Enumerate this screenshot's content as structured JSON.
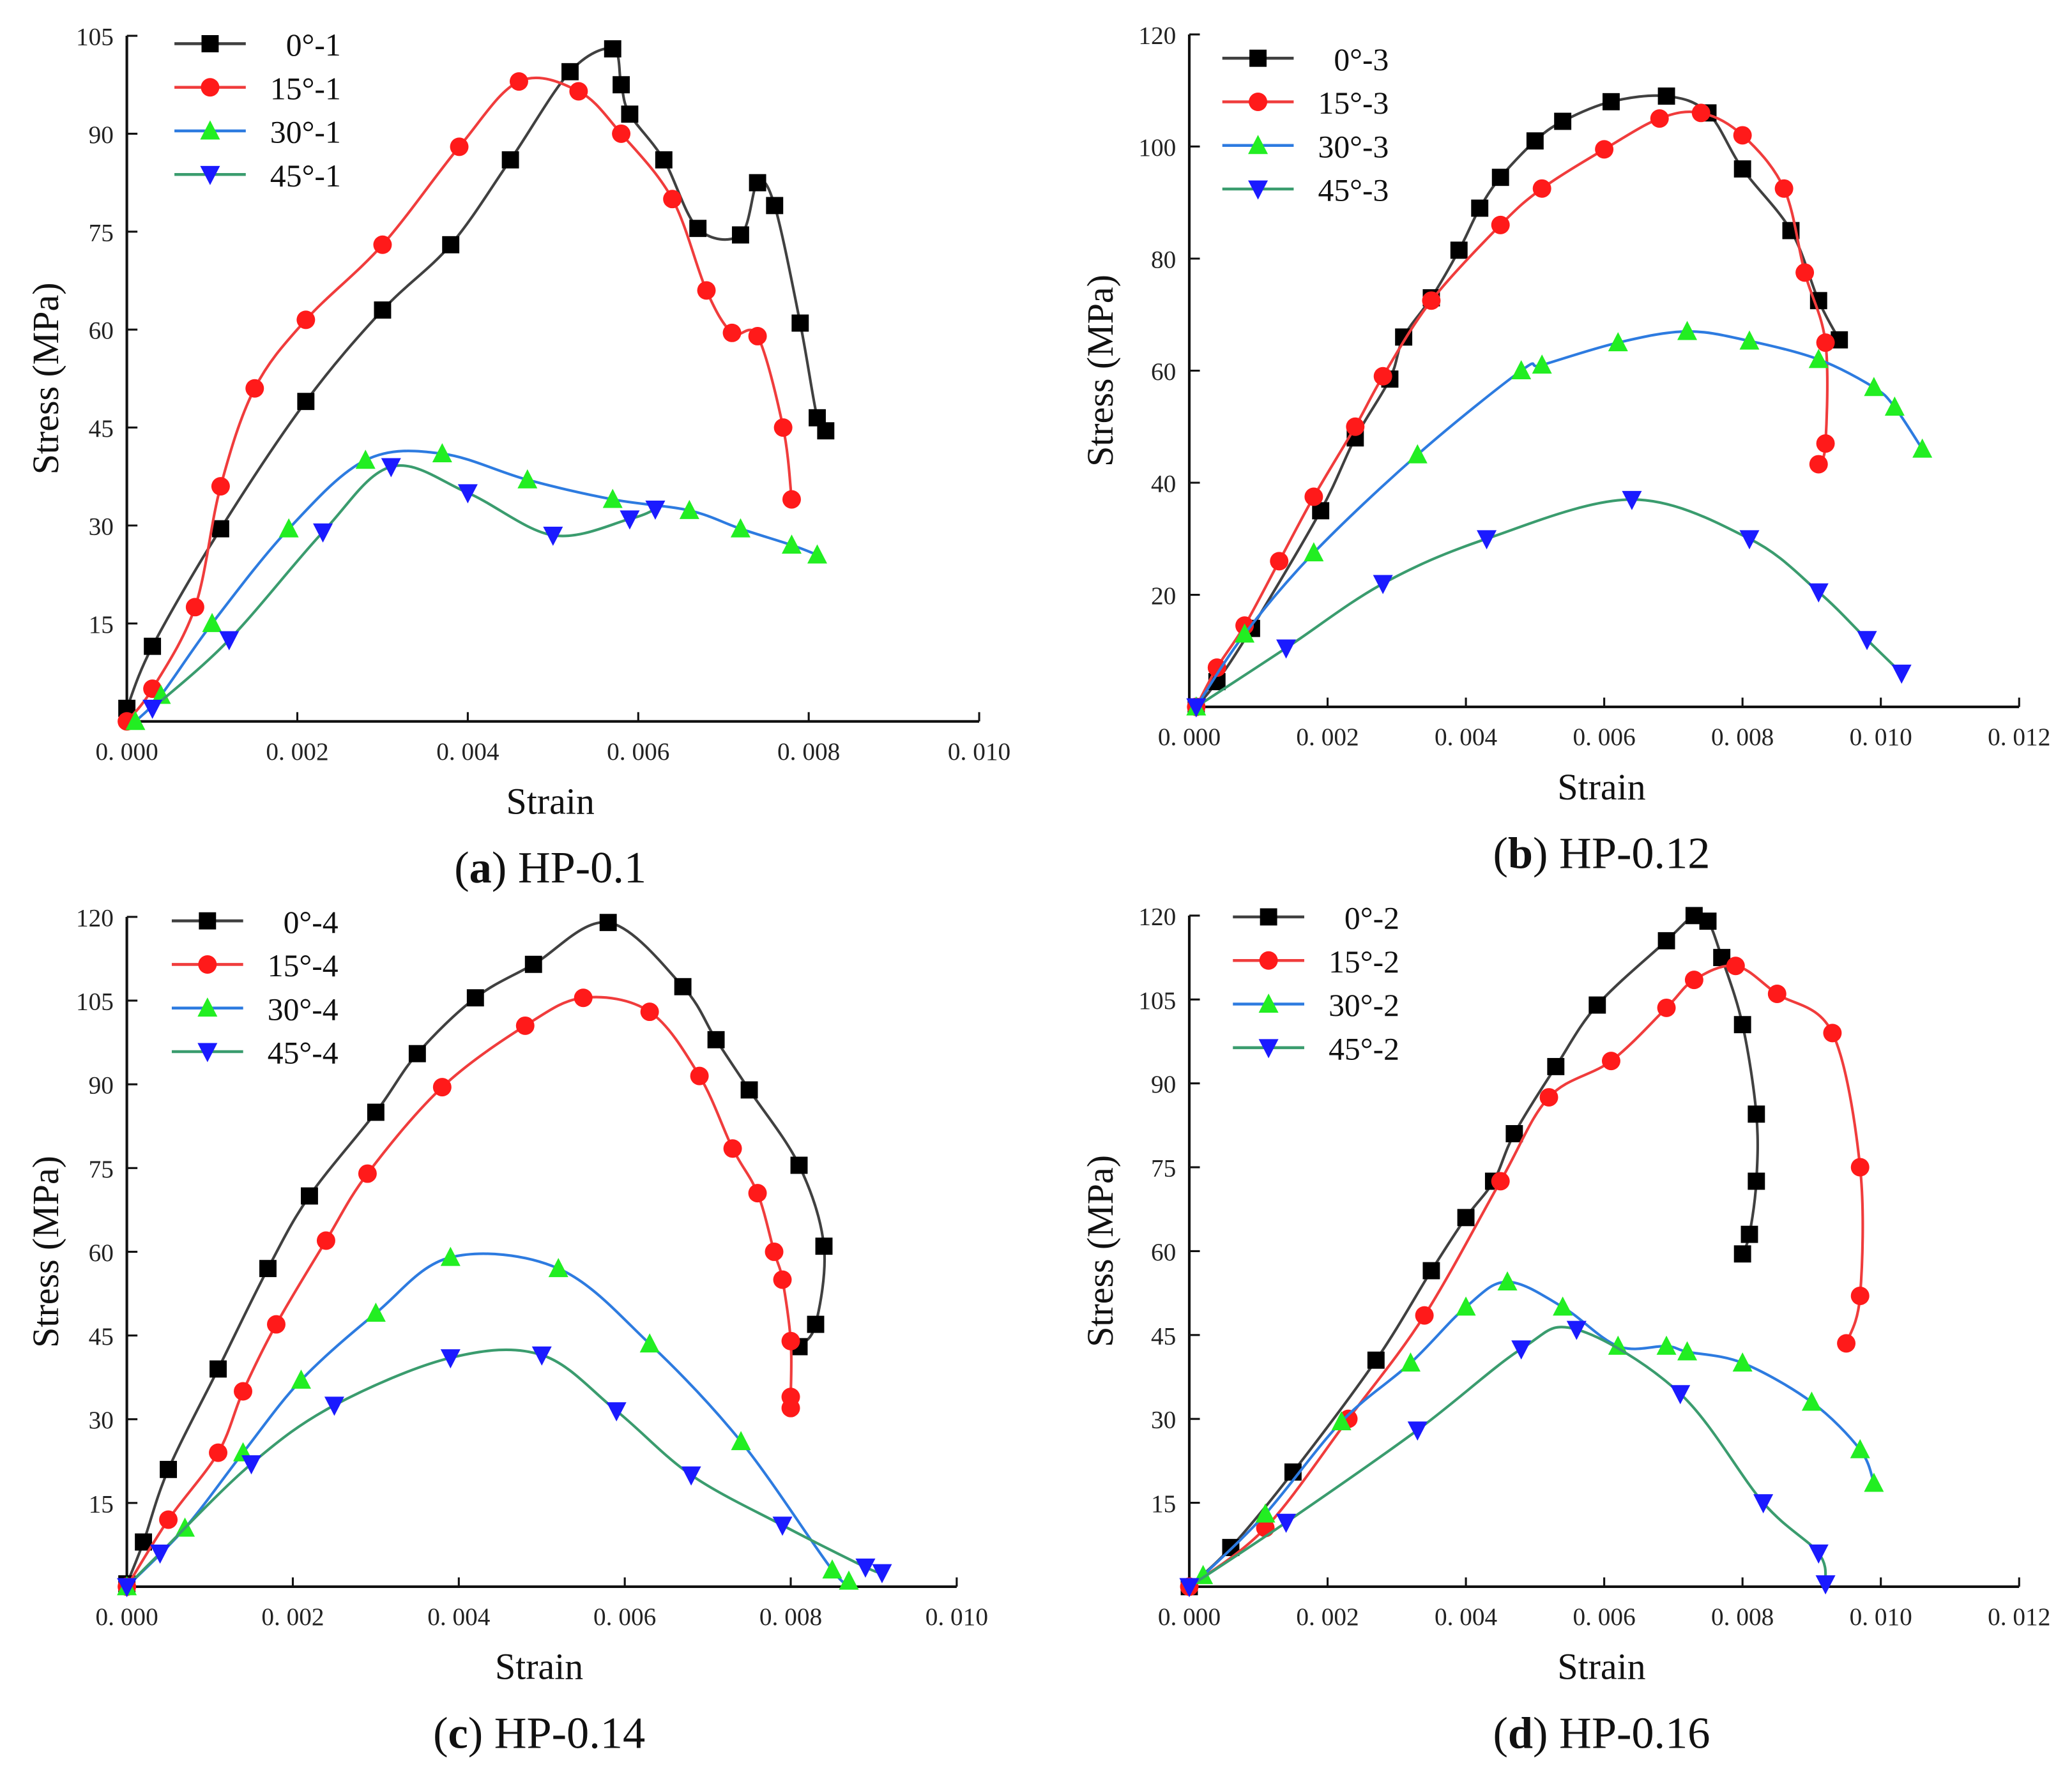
{
  "chart_data": [
    {
      "type": "line",
      "caption_letter": "a",
      "caption_text": "HP-0.1",
      "xlabel": "Strain",
      "ylabel": "Stress (MPa)",
      "xlim": [
        0,
        0.01
      ],
      "ylim": [
        0,
        105
      ],
      "xticks": [
        0,
        0.002,
        0.004,
        0.006,
        0.008,
        0.01
      ],
      "xtick_labels": [
        "0. 000",
        "0. 002",
        "0. 004",
        "0. 006",
        "0. 008",
        "0. 010"
      ],
      "yticks": [
        15,
        30,
        45,
        60,
        75,
        90,
        105
      ],
      "ytick_labels": [
        "15",
        "30",
        "45",
        "60",
        "75",
        "90",
        "105"
      ],
      "legend_position": "top-left",
      "series": [
        {
          "name": "0°-1",
          "line_color": "#404040",
          "marker_color": "#000000",
          "marker": "square",
          "x": [
            0,
            0.0003,
            0.0011,
            0.0021,
            0.003,
            0.0038,
            0.0045,
            0.0052,
            0.0057,
            0.0058,
            0.0059,
            0.0063,
            0.0067,
            0.0072,
            0.0074,
            0.0076,
            0.0079,
            0.0081,
            0.0082
          ],
          "y": [
            2,
            11.5,
            29.5,
            49,
            63,
            73,
            86,
            99.5,
            103,
            97.5,
            93,
            86,
            75.5,
            74.5,
            82.5,
            79,
            61,
            46.5,
            44.5
          ]
        },
        {
          "name": "15°-1",
          "line_color": "#f03c3c",
          "marker_color": "#ff1a1a",
          "marker": "circle",
          "x": [
            0,
            0.0003,
            0.0008,
            0.0011,
            0.0015,
            0.0021,
            0.003,
            0.0039,
            0.0046,
            0.0053,
            0.0058,
            0.0064,
            0.0068,
            0.0071,
            0.0074,
            0.0077,
            0.0078
          ],
          "y": [
            0,
            5,
            17.5,
            36,
            51,
            61.5,
            73,
            88,
            98,
            96.5,
            90,
            80,
            66,
            59.5,
            59,
            45,
            34
          ]
        },
        {
          "name": "30°-1",
          "line_color": "#2d7be0",
          "marker_color": "#22ee22",
          "marker": "triangle-up",
          "x": [
            0.0001,
            0.0004,
            0.001,
            0.0019,
            0.0028,
            0.0037,
            0.0047,
            0.0057,
            0.0066,
            0.0072,
            0.0078,
            0.0081
          ],
          "y": [
            0,
            4,
            15,
            29.5,
            40,
            41,
            37,
            34,
            32.3,
            29.5,
            27,
            25.5
          ]
        },
        {
          "name": "45°-1",
          "line_color": "#3a9c6e",
          "marker_color": "#1a1aff",
          "marker": "triangle-down",
          "x": [
            0.0003,
            0.0012,
            0.0023,
            0.0031,
            0.004,
            0.005,
            0.0059,
            0.0062
          ],
          "y": [
            2,
            12.5,
            29,
            39,
            35,
            28.5,
            31,
            32.5
          ]
        }
      ]
    },
    {
      "type": "line",
      "caption_letter": "b",
      "caption_text": "HP-0.12",
      "xlabel": "Strain",
      "ylabel": "Stress (MPa)",
      "xlim": [
        0,
        0.012
      ],
      "ylim": [
        0,
        120
      ],
      "xticks": [
        0,
        0.002,
        0.004,
        0.006,
        0.008,
        0.01,
        0.012
      ],
      "xtick_labels": [
        "0. 000",
        "0. 002",
        "0. 004",
        "0. 006",
        "0. 008",
        "0. 010",
        "0. 012"
      ],
      "yticks": [
        20,
        40,
        60,
        80,
        100,
        120
      ],
      "ytick_labels": [
        "20",
        "40",
        "60",
        "80",
        "100",
        "120"
      ],
      "legend_position": "top-left",
      "series": [
        {
          "name": "0°-3",
          "line_color": "#404040",
          "marker_color": "#000000",
          "marker": "square",
          "x": [
            0.0001,
            0.0004,
            0.0009,
            0.0019,
            0.0024,
            0.0029,
            0.0031,
            0.0035,
            0.0039,
            0.0042,
            0.0045,
            0.005,
            0.0054,
            0.0061,
            0.0069,
            0.0075,
            0.008,
            0.0087,
            0.0091,
            0.0094
          ],
          "y": [
            0,
            4.5,
            14,
            35,
            48,
            58.5,
            66,
            73,
            81.5,
            89,
            94.5,
            101,
            104.5,
            108,
            109,
            106,
            96,
            85,
            72.5,
            65.5
          ]
        },
        {
          "name": "15°-3",
          "line_color": "#f03c3c",
          "marker_color": "#ff1a1a",
          "marker": "circle",
          "x": [
            0.0001,
            0.0004,
            0.0008,
            0.0013,
            0.0018,
            0.0024,
            0.0028,
            0.0035,
            0.0045,
            0.0051,
            0.006,
            0.0068,
            0.0074,
            0.008,
            0.0086,
            0.0089,
            0.0092,
            0.0092,
            0.0091
          ],
          "y": [
            0,
            7,
            14.5,
            26,
            37.5,
            50,
            59,
            72.5,
            86,
            92.5,
            99.5,
            105,
            106,
            102,
            92.5,
            77.5,
            65,
            47,
            43.3
          ]
        },
        {
          "name": "30°-3",
          "line_color": "#2d7be0",
          "marker_color": "#22ee22",
          "marker": "triangle-up",
          "x": [
            0.0001,
            0.0008,
            0.0018,
            0.0033,
            0.0048,
            0.0051,
            0.0062,
            0.0072,
            0.0081,
            0.0091,
            0.0099,
            0.0102,
            0.0106
          ],
          "y": [
            0,
            13,
            27.5,
            45,
            60,
            61,
            65,
            67,
            65.3,
            62,
            57,
            53.5,
            46
          ]
        },
        {
          "name": "45°-3",
          "line_color": "#3a9c6e",
          "marker_color": "#1a1aff",
          "marker": "triangle-down",
          "x": [
            0.0001,
            0.0014,
            0.0028,
            0.0043,
            0.0064,
            0.0081,
            0.0091,
            0.0098,
            0.0103
          ],
          "y": [
            0,
            10.5,
            22,
            30,
            37,
            30,
            20.5,
            12,
            6
          ]
        }
      ]
    },
    {
      "type": "line",
      "caption_letter": "c",
      "caption_text": "HP-0.14",
      "xlabel": "Strain",
      "ylabel": "Stress (MPa)",
      "xlim": [
        0,
        0.01
      ],
      "ylim": [
        0,
        120
      ],
      "xticks": [
        0,
        0.002,
        0.004,
        0.006,
        0.008,
        0.01
      ],
      "xtick_labels": [
        "0. 000",
        "0. 002",
        "0. 004",
        "0. 006",
        "0. 008",
        "0. 010"
      ],
      "yticks": [
        15,
        30,
        45,
        60,
        75,
        90,
        105,
        120
      ],
      "ytick_labels": [
        "15",
        "30",
        "45",
        "60",
        "75",
        "90",
        "105",
        "120"
      ],
      "legend_position": "top-left",
      "series": [
        {
          "name": "0°-4",
          "line_color": "#404040",
          "marker_color": "#000000",
          "marker": "square",
          "x": [
            0,
            0.0002,
            0.0005,
            0.0011,
            0.0017,
            0.0022,
            0.003,
            0.0035,
            0.0042,
            0.0049,
            0.0058,
            0.0067,
            0.0071,
            0.0075,
            0.0081,
            0.0084,
            0.0083,
            0.0081
          ],
          "y": [
            0.5,
            8,
            21,
            39,
            57,
            70,
            85,
            95.5,
            105.5,
            111.5,
            119,
            107.5,
            98,
            89,
            75.5,
            61,
            47,
            43
          ]
        },
        {
          "name": "15°-4",
          "line_color": "#f03c3c",
          "marker_color": "#ff1a1a",
          "marker": "circle",
          "x": [
            0,
            0.0005,
            0.0011,
            0.0014,
            0.0018,
            0.0024,
            0.0029,
            0.0038,
            0.0048,
            0.0055,
            0.0063,
            0.0069,
            0.0073,
            0.0076,
            0.0078,
            0.0079,
            0.008,
            0.008,
            0.008
          ],
          "y": [
            0,
            12,
            24,
            35,
            47,
            62,
            74,
            89.5,
            100.5,
            105.5,
            103,
            91.5,
            78.5,
            70.5,
            60,
            55,
            44,
            34,
            32
          ]
        },
        {
          "name": "30°-4",
          "line_color": "#2d7be0",
          "marker_color": "#22ee22",
          "marker": "triangle-up",
          "x": [
            0,
            0.0007,
            0.0014,
            0.0021,
            0.003,
            0.0039,
            0.0052,
            0.0063,
            0.0074,
            0.0085,
            0.0087
          ],
          "y": [
            0,
            10.5,
            24,
            37,
            49,
            59,
            57,
            43.5,
            26,
            3,
            1
          ]
        },
        {
          "name": "45°-4",
          "line_color": "#3a9c6e",
          "marker_color": "#1a1aff",
          "marker": "triangle-down",
          "x": [
            0,
            0.0004,
            0.0015,
            0.0025,
            0.0039,
            0.005,
            0.0059,
            0.0068,
            0.0079,
            0.0089,
            0.0091
          ],
          "y": [
            0,
            6,
            22,
            32.5,
            41,
            41.5,
            31.5,
            20,
            11,
            3.5,
            2.5
          ]
        }
      ]
    },
    {
      "type": "line",
      "caption_letter": "d",
      "caption_text": "HP-0.16",
      "xlabel": "Strain",
      "ylabel": "Stress (MPa)",
      "xlim": [
        0,
        0.012
      ],
      "ylim": [
        0,
        120
      ],
      "xticks": [
        0,
        0.002,
        0.004,
        0.006,
        0.008,
        0.01,
        0.012
      ],
      "xtick_labels": [
        "0. 000",
        "0. 002",
        "0. 004",
        "0. 006",
        "0. 008",
        "0. 010",
        "0. 012"
      ],
      "yticks": [
        15,
        30,
        45,
        60,
        75,
        90,
        105,
        120
      ],
      "ytick_labels": [
        "15",
        "30",
        "45",
        "60",
        "75",
        "90",
        "105",
        "120"
      ],
      "legend_position": "top-left",
      "series": [
        {
          "name": "0°-2",
          "line_color": "#404040",
          "marker_color": "#000000",
          "marker": "square",
          "x": [
            0,
            0.0006,
            0.0015,
            0.0027,
            0.0035,
            0.004,
            0.0044,
            0.0047,
            0.0053,
            0.0059,
            0.0069,
            0.0073,
            0.0075,
            0.0077,
            0.008,
            0.0082,
            0.0082,
            0.0081,
            0.008
          ],
          "y": [
            0,
            7,
            20.5,
            40.5,
            56.5,
            66,
            72.5,
            81,
            93,
            104,
            115.5,
            120,
            119,
            112.5,
            100.5,
            84.5,
            72.5,
            63,
            59.5
          ]
        },
        {
          "name": "15°-2",
          "line_color": "#f03c3c",
          "marker_color": "#ff1a1a",
          "marker": "circle",
          "x": [
            0,
            0.0011,
            0.0023,
            0.0034,
            0.0045,
            0.0052,
            0.0061,
            0.0069,
            0.0073,
            0.0079,
            0.0085,
            0.0093,
            0.0097,
            0.0097,
            0.0095
          ],
          "y": [
            0,
            10.5,
            30,
            48.5,
            72.5,
            87.5,
            94,
            103.5,
            108.5,
            111,
            106,
            99,
            75,
            52,
            43.5
          ]
        },
        {
          "name": "30°-2",
          "line_color": "#2d7be0",
          "marker_color": "#22ee22",
          "marker": "triangle-up",
          "x": [
            0.0002,
            0.0011,
            0.0022,
            0.0032,
            0.004,
            0.0046,
            0.0054,
            0.0062,
            0.0069,
            0.0072,
            0.008,
            0.009,
            0.0097,
            0.0099
          ],
          "y": [
            2,
            13,
            29.5,
            40,
            50,
            54.5,
            50,
            43,
            43,
            42,
            40,
            33,
            24.5,
            18.5
          ]
        },
        {
          "name": "45°-2",
          "line_color": "#3a9c6e",
          "marker_color": "#1a1aff",
          "marker": "triangle-down",
          "x": [
            0,
            0.0014,
            0.0033,
            0.0048,
            0.0056,
            0.0071,
            0.0083,
            0.0091,
            0.0092
          ],
          "y": [
            0,
            11.5,
            28,
            42.5,
            46,
            34.5,
            15,
            6,
            0.5
          ]
        }
      ]
    }
  ]
}
